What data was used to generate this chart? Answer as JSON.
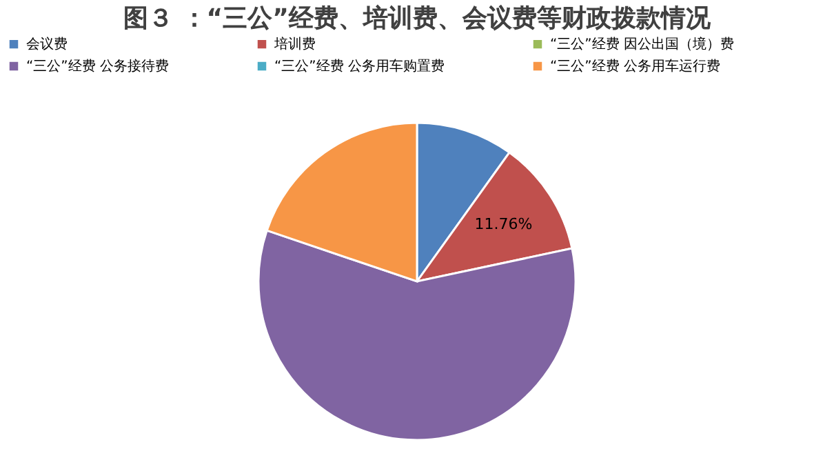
{
  "chart_data": {
    "type": "pie",
    "title": "图３ ：“三公”经费、培训费、会议费等财政拨款情况",
    "categories": [
      "会议费",
      "培训费",
      "“三公”经费 因公出国（境）费",
      "“三公”经费 公务接待费",
      "“三公”经费 公务用车购置费",
      "“三公”经费 公务用车运行费"
    ],
    "values": [
      9.9,
      11.76,
      0,
      58.54,
      0,
      19.8
    ],
    "colors": [
      "#4f81bd",
      "#c0504d",
      "#9bbb59",
      "#8064a2",
      "#4bacc6",
      "#f79646"
    ],
    "value_labels": [
      null,
      "11.76%",
      null,
      null,
      null,
      null
    ],
    "legend": "top"
  }
}
